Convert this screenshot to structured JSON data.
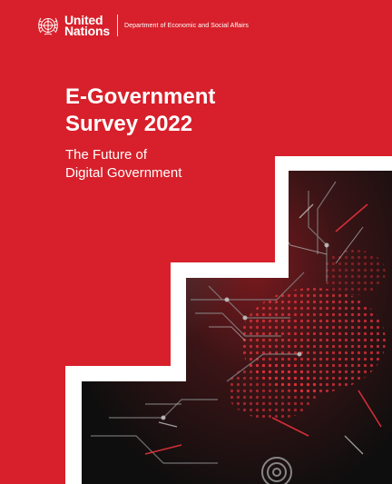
{
  "header": {
    "org_line1": "United",
    "org_line2": "Nations",
    "department": "Department of Economic and Social Affairs",
    "logo_icon": "un-emblem-icon"
  },
  "cover": {
    "title_line1": "E-Government",
    "title_line2": "Survey 2022",
    "subtitle_line1": "The Future of",
    "subtitle_line2": "Digital Government"
  },
  "colors": {
    "background": "#d7202b",
    "text": "#ffffff",
    "artwork_dark": "#151515",
    "artwork_accent": "#e8323c"
  }
}
